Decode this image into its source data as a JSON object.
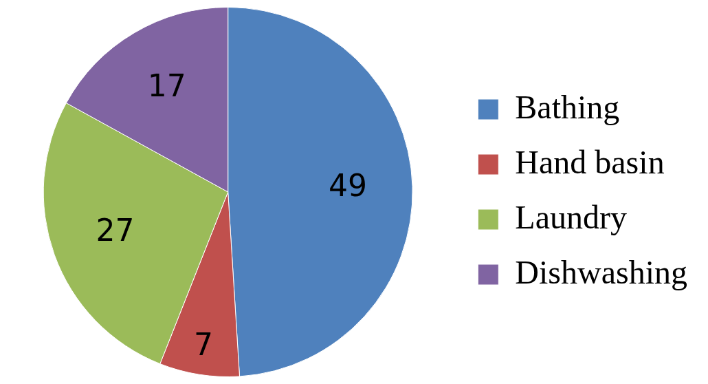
{
  "chart_data": {
    "type": "pie",
    "categories": [
      "Bathing",
      "Hand basin",
      "Laundry",
      "Dishwashing"
    ],
    "values": [
      49,
      7,
      27,
      17
    ],
    "colors": [
      "#4f81bd",
      "#c0504d",
      "#9bbb59",
      "#8064a2"
    ],
    "data_labels": true,
    "legend": "right"
  }
}
